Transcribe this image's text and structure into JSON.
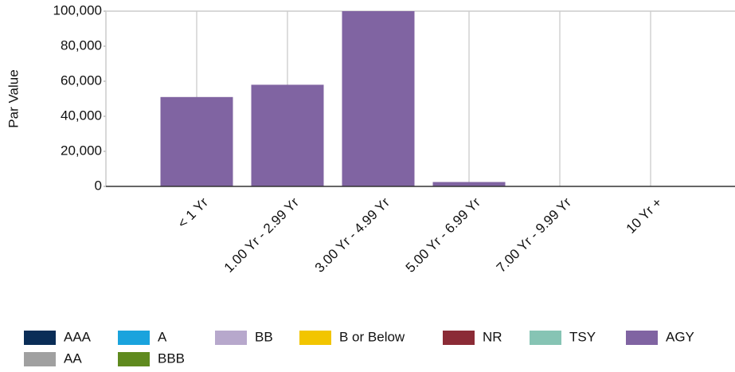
{
  "chart_data": {
    "type": "stacked_bar",
    "y_label": "Par Value",
    "categories": [
      "< 1 Yr",
      "1.00 Yr - 2.99 Yr",
      "3.00 Yr - 4.99 Yr",
      "5.00 Yr - 6.99 Yr",
      "7.00 Yr - 9.99 Yr",
      "10 Yr +"
    ],
    "series": [
      {
        "name": "AAA",
        "color": "#0a2d57",
        "values": [
          0,
          0,
          0,
          0,
          0,
          0
        ]
      },
      {
        "name": "A",
        "color": "#1aa3dd",
        "values": [
          0,
          0,
          0,
          0,
          0,
          0
        ]
      },
      {
        "name": "BB",
        "color": "#b7a8cc",
        "values": [
          0,
          0,
          0,
          0,
          0,
          0
        ]
      },
      {
        "name": "B or Below",
        "color": "#f2c500",
        "values": [
          0,
          0,
          0,
          0,
          0,
          0
        ]
      },
      {
        "name": "NR",
        "color": "#8b2b36",
        "values": [
          0,
          0,
          0,
          0,
          0,
          0
        ]
      },
      {
        "name": "TSY",
        "color": "#86c4b4",
        "values": [
          0,
          0,
          0,
          0,
          0,
          0
        ]
      },
      {
        "name": "AGY",
        "color": "#8064a2",
        "values": [
          51000,
          58000,
          100000,
          2500,
          0,
          0
        ]
      },
      {
        "name": "AA",
        "color": "#a0a0a0",
        "values": [
          0,
          0,
          0,
          0,
          0,
          0
        ]
      },
      {
        "name": "BBB",
        "color": "#5f8a1e",
        "values": [
          0,
          0,
          0,
          0,
          0,
          0
        ]
      }
    ],
    "ylim": [
      0,
      100000
    ],
    "yticks": [
      0,
      {
        "value": 20000,
        "label": "20,000"
      },
      {
        "value": 40000,
        "label": "40,000"
      },
      {
        "value": 60000,
        "label": "60,000"
      },
      {
        "value": 80000,
        "label": "80,000"
      },
      {
        "value": 100000,
        "label": "100,000"
      }
    ],
    "grid": true
  }
}
